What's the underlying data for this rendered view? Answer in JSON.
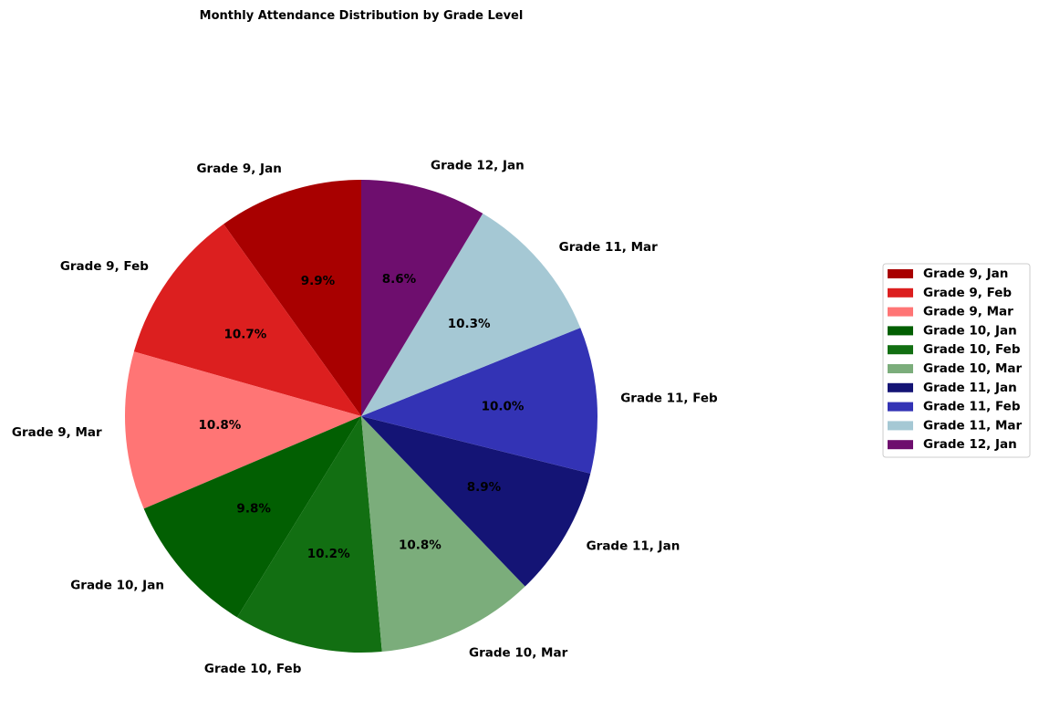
{
  "chart_data": {
    "type": "pie",
    "title": "Monthly Attendance Distribution by Grade Level",
    "start_angle_deg": 90,
    "direction": "counterclockwise",
    "legend_position": "right",
    "slices": [
      {
        "label": "Grade 9, Jan",
        "value": 9.9,
        "pct_label": "9.9%",
        "color": "#a80000"
      },
      {
        "label": "Grade 9, Feb",
        "value": 10.7,
        "pct_label": "10.7%",
        "color": "#dc1f1f"
      },
      {
        "label": "Grade 9, Mar",
        "value": 10.8,
        "pct_label": "10.8%",
        "color": "#ff7575"
      },
      {
        "label": "Grade 10, Jan",
        "value": 9.8,
        "pct_label": "9.8%",
        "color": "#025f02"
      },
      {
        "label": "Grade 10, Feb",
        "value": 10.2,
        "pct_label": "10.2%",
        "color": "#126f12"
      },
      {
        "label": "Grade 10, Mar",
        "value": 10.8,
        "pct_label": "10.8%",
        "color": "#7bad7b"
      },
      {
        "label": "Grade 11, Jan",
        "value": 8.9,
        "pct_label": "8.9%",
        "color": "#141475"
      },
      {
        "label": "Grade 11, Feb",
        "value": 10.0,
        "pct_label": "10.0%",
        "color": "#3333b5"
      },
      {
        "label": "Grade 11, Mar",
        "value": 10.3,
        "pct_label": "10.3%",
        "color": "#a5c8d4"
      },
      {
        "label": "Grade 12, Jan",
        "value": 8.6,
        "pct_label": "8.6%",
        "color": "#6e0e6e"
      }
    ]
  }
}
